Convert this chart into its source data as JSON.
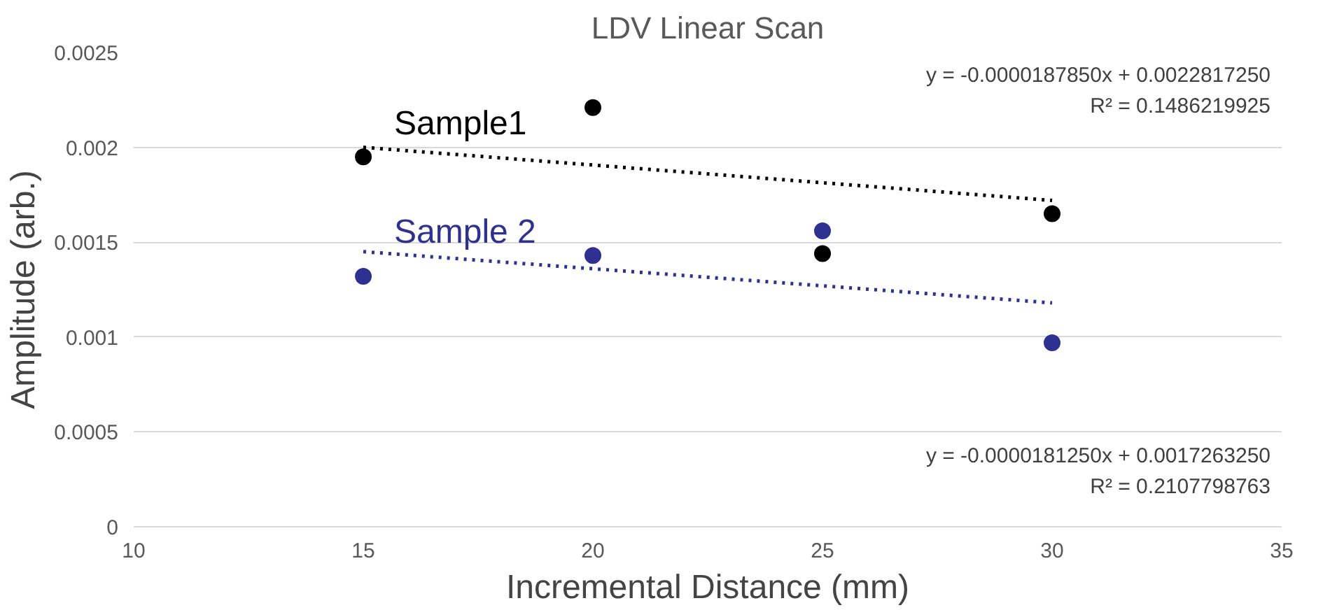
{
  "chart_data": {
    "type": "scatter",
    "title": "LDV Linear Scan",
    "xlabel": "Incremental Distance (mm)",
    "ylabel": "Amplitude (arb.)",
    "xlim": [
      10,
      35
    ],
    "xticks": [
      10,
      15,
      20,
      25,
      30,
      35
    ],
    "ylim": [
      0,
      0.0025
    ],
    "yticks": [
      0,
      0.0005,
      0.001,
      0.0015,
      0.002,
      0.0025
    ],
    "grid": "y",
    "series": [
      {
        "name": "Sample1",
        "color": "#000000",
        "marker": "circle",
        "x": [
          15,
          20,
          25,
          30
        ],
        "values": [
          0.00195,
          0.00221,
          0.00144,
          0.00165
        ]
      },
      {
        "name": "Sample 2",
        "color": "#2e3192",
        "marker": "circle",
        "x": [
          15,
          20,
          25,
          30
        ],
        "values": [
          0.00132,
          0.00143,
          0.00156,
          0.00097
        ]
      },
      {
        "color": "#000000",
        "type": "line",
        "line_style": "dotted",
        "x": [
          15,
          30
        ],
        "values": [
          0.002,
          0.00172
        ]
      },
      {
        "color": "#2e3192",
        "type": "line",
        "line_style": "dotted",
        "x": [
          15,
          30
        ],
        "values": [
          0.00145,
          0.00118
        ]
      }
    ],
    "annotations": [
      "y = -0.0000187850x + 0.0022817250\nR² = 0.1486219925",
      "y = -0.0000181250x + 0.0017263250\nR² = 0.2107798763"
    ]
  }
}
